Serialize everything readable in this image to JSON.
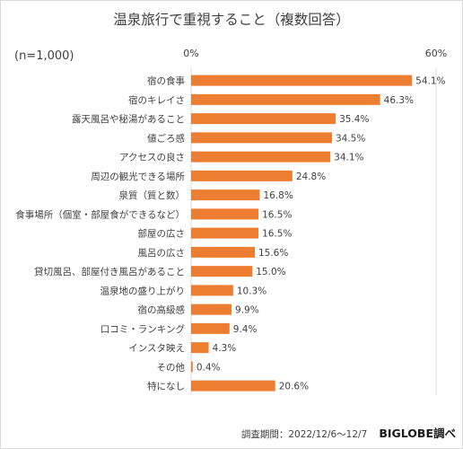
{
  "title": "温泉旅行で重視すること（複数回答）",
  "sample_note": "(n=1,000)",
  "footer": {
    "survey_period": "調査期間：2022/12/6～12/7",
    "brand": "BIGLOBE調べ"
  },
  "colors": {
    "bar": "#ED7D31",
    "gridline": "#D9D9D9",
    "text": "#404040"
  },
  "chart_data": {
    "type": "bar",
    "orientation": "horizontal",
    "title": "温泉旅行で重視すること（複数回答）",
    "xlim": [
      0,
      60
    ],
    "tick_values": [
      0,
      60
    ],
    "tick_labels": [
      "0%",
      "60%"
    ],
    "grid": true,
    "categories": [
      "宿の食事",
      "宿のキレイさ",
      "露天風呂や秘湯があること",
      "値ごろ感",
      "アクセスの良さ",
      "周辺の観光できる場所",
      "泉質（質と数）",
      "食事場所（個室・部屋食ができるなど）",
      "部屋の広さ",
      "風呂の広さ",
      "貸切風呂、部屋付き風呂があること",
      "温泉地の盛り上がり",
      "宿の高級感",
      "口コミ・ランキング",
      "インスタ映え",
      "その他",
      "特になし"
    ],
    "values": [
      54.1,
      46.3,
      35.4,
      34.5,
      34.1,
      24.8,
      16.8,
      16.5,
      16.5,
      15.6,
      15.0,
      10.3,
      9.9,
      9.4,
      4.3,
      0.4,
      20.6
    ],
    "value_labels": [
      "54.1%",
      "46.3%",
      "35.4%",
      "34.5%",
      "34.1%",
      "24.8%",
      "16.8%",
      "16.5%",
      "16.5%",
      "15.6%",
      "15.0%",
      "10.3%",
      "9.9%",
      "9.4%",
      "4.3%",
      "0.4%",
      "20.6%"
    ]
  }
}
